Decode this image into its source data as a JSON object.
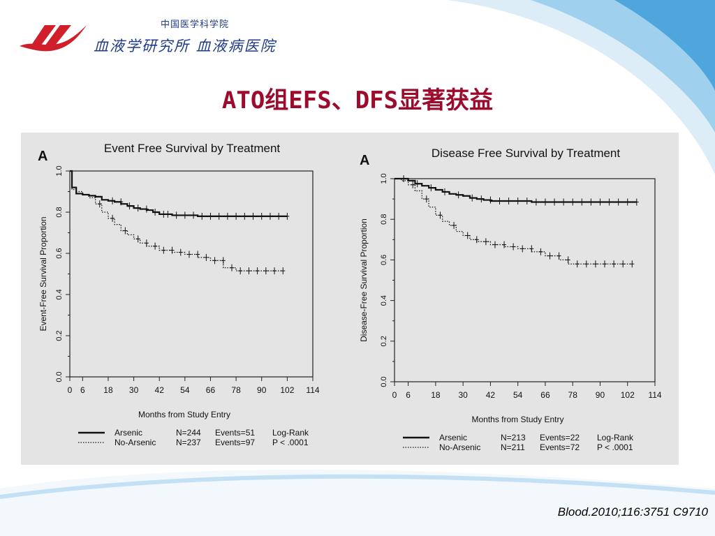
{
  "header": {
    "institute_line": "中国医学科学院",
    "subtitle_line": "血液学研究所 血液病医院",
    "logo_icon": "red-swoosh-logo-icon"
  },
  "slide_title": "ATO组EFS、DFS显著获益",
  "citation": "Blood.2010;116:3751 C9710",
  "colors": {
    "title": "#9c0a2c",
    "logo_red": "#d01f2a",
    "logo_text": "#1f3a8a",
    "panel_bg": "#e4e4e4"
  },
  "chart_data": [
    {
      "type": "line",
      "panel_letter": "A",
      "title": "Event Free Survival by Treatment",
      "xlabel": "Months from Study Entry",
      "ylabel": "Event-Free Survival Proportion",
      "xlim": [
        0,
        114
      ],
      "ylim": [
        0,
        1
      ],
      "xticks": [
        0,
        6,
        18,
        30,
        42,
        54,
        66,
        78,
        90,
        102,
        114
      ],
      "yticks": [
        0.0,
        0.2,
        0.4,
        0.6,
        0.8,
        1.0
      ],
      "ytick_labels": [
        "0.0",
        "0.2",
        "0.4",
        "0.6",
        "0.8",
        "1.0"
      ],
      "grid": false,
      "legend_position": "bottom",
      "series": [
        {
          "name": "Arsenic",
          "style": "solid",
          "n": "N=244",
          "events": "Events=51",
          "x": [
            0,
            1,
            3,
            6,
            9,
            12,
            15,
            18,
            21,
            24,
            27,
            30,
            33,
            36,
            39,
            42,
            48,
            54,
            60,
            66,
            72,
            78,
            84,
            90,
            96,
            102
          ],
          "y": [
            1.0,
            0.92,
            0.89,
            0.885,
            0.88,
            0.875,
            0.86,
            0.855,
            0.85,
            0.84,
            0.83,
            0.82,
            0.815,
            0.81,
            0.8,
            0.79,
            0.785,
            0.785,
            0.78,
            0.78,
            0.78,
            0.78,
            0.78,
            0.78,
            0.78,
            0.78
          ],
          "censor_x": [
            20,
            24,
            28,
            32,
            36,
            40,
            44,
            46,
            50,
            54,
            58,
            62,
            66,
            70,
            74,
            78,
            82,
            86,
            90,
            94,
            98,
            102
          ]
        },
        {
          "name": "No-Arsenic",
          "style": "dotted",
          "n": "N=237",
          "events": "Events=97",
          "x": [
            0,
            1,
            3,
            6,
            9,
            12,
            15,
            18,
            21,
            24,
            27,
            30,
            33,
            36,
            42,
            48,
            54,
            60,
            66,
            72,
            78,
            84,
            90,
            96,
            100
          ],
          "y": [
            1.0,
            0.91,
            0.9,
            0.885,
            0.87,
            0.84,
            0.8,
            0.77,
            0.74,
            0.71,
            0.69,
            0.67,
            0.65,
            0.635,
            0.615,
            0.605,
            0.595,
            0.58,
            0.565,
            0.53,
            0.515,
            0.515,
            0.515,
            0.515,
            0.515
          ],
          "censor_x": [
            14,
            20,
            26,
            32,
            36,
            40,
            44,
            48,
            52,
            56,
            60,
            64,
            68,
            72,
            76,
            80,
            84,
            88,
            92,
            96,
            100
          ]
        }
      ],
      "legend": {
        "stat_header": "Log-Rank",
        "stat_p": "P < .0001"
      }
    },
    {
      "type": "line",
      "panel_letter": "A",
      "title": "Disease Free Survival by Treatment",
      "xlabel": "Months from Study Entry",
      "ylabel": "Disease-Free Survival Proportion",
      "xlim": [
        0,
        114
      ],
      "ylim": [
        0,
        1
      ],
      "xticks": [
        0,
        6,
        18,
        30,
        42,
        54,
        66,
        78,
        90,
        102,
        114
      ],
      "yticks": [
        0.0,
        0.2,
        0.4,
        0.6,
        0.8,
        1.0
      ],
      "ytick_labels": [
        "0.0",
        "0.2",
        "0.4",
        "0.6",
        "0.8",
        "1.0"
      ],
      "grid": false,
      "legend_position": "bottom",
      "series": [
        {
          "name": "Arsenic",
          "style": "solid",
          "n": "N=213",
          "events": "Events=22",
          "x": [
            0,
            3,
            6,
            9,
            12,
            15,
            18,
            21,
            24,
            27,
            30,
            33,
            36,
            39,
            42,
            48,
            54,
            60,
            66,
            72,
            78,
            84,
            90,
            96,
            102,
            106
          ],
          "y": [
            1.0,
            1.0,
            0.99,
            0.975,
            0.965,
            0.955,
            0.945,
            0.935,
            0.925,
            0.92,
            0.915,
            0.905,
            0.9,
            0.895,
            0.89,
            0.89,
            0.89,
            0.885,
            0.885,
            0.885,
            0.885,
            0.885,
            0.885,
            0.885,
            0.885,
            0.885
          ],
          "censor_x": [
            4,
            10,
            16,
            22,
            28,
            34,
            38,
            42,
            46,
            50,
            54,
            58,
            62,
            66,
            70,
            74,
            78,
            82,
            86,
            90,
            94,
            98,
            102,
            106
          ]
        },
        {
          "name": "No-Arsenic",
          "style": "dotted",
          "n": "N=211",
          "events": "Events=72",
          "x": [
            0,
            3,
            6,
            9,
            12,
            15,
            18,
            21,
            24,
            27,
            30,
            33,
            36,
            42,
            48,
            54,
            60,
            66,
            72,
            76,
            84,
            90,
            96,
            104
          ],
          "y": [
            1.0,
            0.99,
            0.97,
            0.94,
            0.9,
            0.86,
            0.82,
            0.79,
            0.77,
            0.74,
            0.72,
            0.7,
            0.69,
            0.675,
            0.665,
            0.655,
            0.64,
            0.62,
            0.6,
            0.58,
            0.58,
            0.58,
            0.58,
            0.58
          ],
          "censor_x": [
            8,
            14,
            20,
            26,
            32,
            36,
            40,
            44,
            48,
            52,
            56,
            60,
            64,
            68,
            72,
            76,
            80,
            84,
            88,
            92,
            96,
            100,
            104
          ]
        }
      ],
      "legend": {
        "stat_header": "Log-Rank",
        "stat_p": "P < .0001"
      }
    }
  ]
}
